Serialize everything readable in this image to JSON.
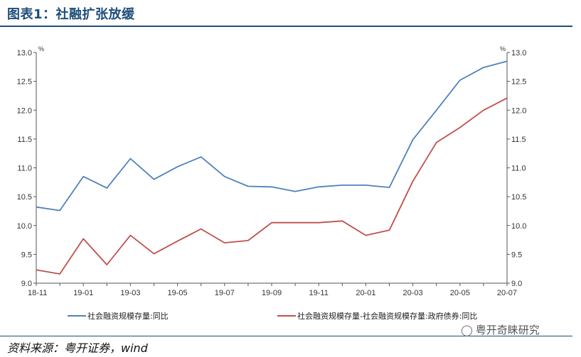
{
  "header": {
    "title": "图表1：社融扩张放缓"
  },
  "source": {
    "text": "资料来源：粤开证券，wind"
  },
  "watermark": {
    "icon": "wechat-icon",
    "text": "粤开奇睐研究"
  },
  "colors": {
    "title": "#1f4e79",
    "series_blue": "#4f81bd",
    "series_red": "#c0504d"
  },
  "chart_data": {
    "type": "line",
    "title": "",
    "left_unit": "%",
    "right_unit": "%",
    "ylim": [
      9.0,
      13.0
    ],
    "yticks": [
      "9.0",
      "9.5",
      "10.0",
      "10.5",
      "11.0",
      "11.5",
      "12.0",
      "12.5",
      "13.0"
    ],
    "x": [
      "18-11",
      "18-12",
      "19-01",
      "19-02",
      "19-03",
      "19-04",
      "19-05",
      "19-06",
      "19-07",
      "19-08",
      "19-09",
      "19-10",
      "19-11",
      "19-12",
      "20-01",
      "20-02",
      "20-03",
      "20-04",
      "20-05",
      "20-06",
      "20-07"
    ],
    "xtick_labels": [
      "18-11",
      "19-01",
      "19-03",
      "19-05",
      "19-07",
      "19-09",
      "19-11",
      "20-01",
      "20-03",
      "20-05",
      "20-07"
    ],
    "grid": false,
    "legend_position": "bottom",
    "series": [
      {
        "name": "社会融资规模存量:同比",
        "color": "#4f81bd",
        "values": [
          10.32,
          10.26,
          10.85,
          10.65,
          11.16,
          10.8,
          11.02,
          11.19,
          10.85,
          10.68,
          10.67,
          10.59,
          10.67,
          10.7,
          10.7,
          10.66,
          11.49,
          12.0,
          12.52,
          12.74,
          12.85
        ]
      },
      {
        "name": "社会融资规模存量-社会融资规模存量:政府债券:同比",
        "color": "#c0504d",
        "values": [
          9.23,
          9.16,
          9.77,
          9.32,
          9.83,
          9.51,
          9.73,
          9.94,
          9.7,
          9.74,
          10.05,
          10.05,
          10.05,
          10.08,
          9.83,
          9.92,
          10.77,
          11.44,
          11.7,
          12.0,
          12.21
        ]
      }
    ]
  }
}
